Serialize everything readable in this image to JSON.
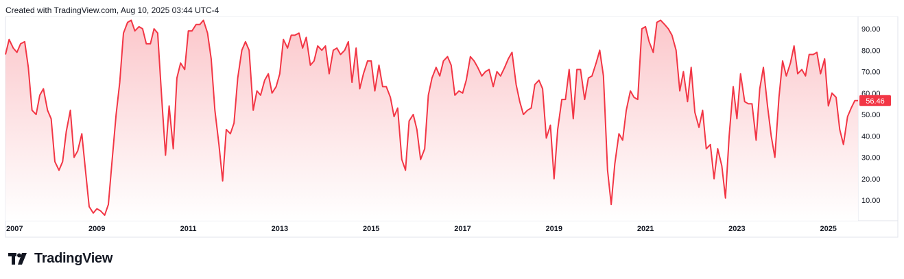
{
  "header": {
    "created_text": "Created with TradingView.com, Aug 10, 2025 03:44 UTC-4"
  },
  "brand": {
    "name": "TradingView",
    "logo_icon": "tradingview-logo-icon"
  },
  "chart_data": {
    "type": "area",
    "line_color": "#f23645",
    "fill_color_top": "#fbc4c8",
    "fill_color_bottom": "#ffffff",
    "last_value_label": "56.46",
    "ylim": [
      0,
      96
    ],
    "xlim": [
      2007.0,
      2025.65
    ],
    "y_ticks": [
      "10.00",
      "20.00",
      "30.00",
      "40.00",
      "50.00",
      "60.00",
      "70.00",
      "80.00",
      "90.00"
    ],
    "x_ticks": [
      "2007",
      "2009",
      "2011",
      "2013",
      "2015",
      "2017",
      "2019",
      "2021",
      "2023",
      "2025"
    ],
    "points": [
      [
        2007.0,
        78
      ],
      [
        2007.08,
        85
      ],
      [
        2007.17,
        81
      ],
      [
        2007.25,
        79
      ],
      [
        2007.33,
        83
      ],
      [
        2007.42,
        84
      ],
      [
        2007.5,
        72
      ],
      [
        2007.58,
        52
      ],
      [
        2007.67,
        50
      ],
      [
        2007.75,
        59
      ],
      [
        2007.83,
        62
      ],
      [
        2007.92,
        52
      ],
      [
        2008.0,
        48
      ],
      [
        2008.08,
        28
      ],
      [
        2008.17,
        24
      ],
      [
        2008.25,
        28
      ],
      [
        2008.33,
        42
      ],
      [
        2008.42,
        52
      ],
      [
        2008.5,
        30
      ],
      [
        2008.58,
        33
      ],
      [
        2008.67,
        41
      ],
      [
        2008.75,
        24
      ],
      [
        2008.83,
        7
      ],
      [
        2008.92,
        4
      ],
      [
        2009.0,
        6
      ],
      [
        2009.08,
        5
      ],
      [
        2009.17,
        3
      ],
      [
        2009.25,
        8
      ],
      [
        2009.33,
        28
      ],
      [
        2009.42,
        50
      ],
      [
        2009.5,
        65
      ],
      [
        2009.58,
        88
      ],
      [
        2009.67,
        93
      ],
      [
        2009.75,
        94
      ],
      [
        2009.83,
        89
      ],
      [
        2009.92,
        91
      ],
      [
        2010.0,
        90
      ],
      [
        2010.08,
        83
      ],
      [
        2010.17,
        83
      ],
      [
        2010.25,
        90
      ],
      [
        2010.33,
        88
      ],
      [
        2010.42,
        57
      ],
      [
        2010.5,
        31
      ],
      [
        2010.58,
        54
      ],
      [
        2010.67,
        34
      ],
      [
        2010.75,
        67
      ],
      [
        2010.83,
        74
      ],
      [
        2010.92,
        71
      ],
      [
        2011.0,
        89
      ],
      [
        2011.08,
        89
      ],
      [
        2011.17,
        92
      ],
      [
        2011.25,
        92
      ],
      [
        2011.33,
        94
      ],
      [
        2011.42,
        88
      ],
      [
        2011.5,
        76
      ],
      [
        2011.58,
        52
      ],
      [
        2011.67,
        36
      ],
      [
        2011.75,
        19
      ],
      [
        2011.83,
        43
      ],
      [
        2011.92,
        41
      ],
      [
        2012.0,
        46
      ],
      [
        2012.08,
        67
      ],
      [
        2012.17,
        80
      ],
      [
        2012.25,
        84
      ],
      [
        2012.33,
        80
      ],
      [
        2012.42,
        52
      ],
      [
        2012.5,
        61
      ],
      [
        2012.58,
        59
      ],
      [
        2012.67,
        66
      ],
      [
        2012.75,
        69
      ],
      [
        2012.83,
        60
      ],
      [
        2012.92,
        63
      ],
      [
        2013.0,
        69
      ],
      [
        2013.08,
        85
      ],
      [
        2013.17,
        81
      ],
      [
        2013.25,
        87
      ],
      [
        2013.33,
        87
      ],
      [
        2013.42,
        88
      ],
      [
        2013.5,
        81
      ],
      [
        2013.58,
        86
      ],
      [
        2013.67,
        73
      ],
      [
        2013.75,
        75
      ],
      [
        2013.83,
        82
      ],
      [
        2013.92,
        80
      ],
      [
        2014.0,
        82
      ],
      [
        2014.08,
        69
      ],
      [
        2014.17,
        80
      ],
      [
        2014.25,
        81
      ],
      [
        2014.33,
        78
      ],
      [
        2014.42,
        80
      ],
      [
        2014.5,
        84
      ],
      [
        2014.58,
        65
      ],
      [
        2014.67,
        81
      ],
      [
        2014.75,
        62
      ],
      [
        2014.83,
        69
      ],
      [
        2014.92,
        75
      ],
      [
        2015.0,
        75
      ],
      [
        2015.08,
        61
      ],
      [
        2015.17,
        73
      ],
      [
        2015.25,
        63
      ],
      [
        2015.33,
        63
      ],
      [
        2015.42,
        58
      ],
      [
        2015.5,
        49
      ],
      [
        2015.58,
        53
      ],
      [
        2015.67,
        29
      ],
      [
        2015.75,
        24
      ],
      [
        2015.83,
        47
      ],
      [
        2015.92,
        50
      ],
      [
        2016.0,
        43
      ],
      [
        2016.08,
        29
      ],
      [
        2016.17,
        34
      ],
      [
        2016.25,
        59
      ],
      [
        2016.33,
        67
      ],
      [
        2016.42,
        72
      ],
      [
        2016.5,
        68
      ],
      [
        2016.58,
        75
      ],
      [
        2016.67,
        77
      ],
      [
        2016.75,
        73
      ],
      [
        2016.83,
        59
      ],
      [
        2016.92,
        61
      ],
      [
        2017.0,
        60
      ],
      [
        2017.08,
        66
      ],
      [
        2017.17,
        77
      ],
      [
        2017.25,
        75
      ],
      [
        2017.33,
        72
      ],
      [
        2017.42,
        68
      ],
      [
        2017.5,
        70
      ],
      [
        2017.58,
        71
      ],
      [
        2017.67,
        63
      ],
      [
        2017.75,
        70
      ],
      [
        2017.83,
        68
      ],
      [
        2017.92,
        72
      ],
      [
        2018.0,
        76
      ],
      [
        2018.08,
        79
      ],
      [
        2018.17,
        64
      ],
      [
        2018.25,
        56
      ],
      [
        2018.33,
        50
      ],
      [
        2018.42,
        52
      ],
      [
        2018.5,
        53
      ],
      [
        2018.58,
        64
      ],
      [
        2018.67,
        66
      ],
      [
        2018.75,
        62
      ],
      [
        2018.83,
        39
      ],
      [
        2018.92,
        45
      ],
      [
        2019.0,
        20
      ],
      [
        2019.08,
        43
      ],
      [
        2019.17,
        57
      ],
      [
        2019.25,
        57
      ],
      [
        2019.33,
        71
      ],
      [
        2019.42,
        48
      ],
      [
        2019.5,
        71
      ],
      [
        2019.58,
        71
      ],
      [
        2019.67,
        57
      ],
      [
        2019.75,
        67
      ],
      [
        2019.83,
        68
      ],
      [
        2019.92,
        74
      ],
      [
        2020.0,
        80
      ],
      [
        2020.08,
        68
      ],
      [
        2020.17,
        24
      ],
      [
        2020.25,
        8
      ],
      [
        2020.33,
        27
      ],
      [
        2020.42,
        41
      ],
      [
        2020.5,
        38
      ],
      [
        2020.58,
        52
      ],
      [
        2020.67,
        61
      ],
      [
        2020.75,
        58
      ],
      [
        2020.83,
        57
      ],
      [
        2020.92,
        90
      ],
      [
        2021.0,
        91
      ],
      [
        2021.08,
        84
      ],
      [
        2021.17,
        79
      ],
      [
        2021.25,
        93
      ],
      [
        2021.33,
        94
      ],
      [
        2021.42,
        92
      ],
      [
        2021.5,
        90
      ],
      [
        2021.58,
        87
      ],
      [
        2021.67,
        80
      ],
      [
        2021.75,
        61
      ],
      [
        2021.83,
        70
      ],
      [
        2021.92,
        56
      ],
      [
        2022.0,
        72
      ],
      [
        2022.08,
        51
      ],
      [
        2022.17,
        44
      ],
      [
        2022.25,
        52
      ],
      [
        2022.33,
        34
      ],
      [
        2022.42,
        36
      ],
      [
        2022.5,
        20
      ],
      [
        2022.58,
        34
      ],
      [
        2022.67,
        26
      ],
      [
        2022.75,
        11
      ],
      [
        2022.83,
        40
      ],
      [
        2022.92,
        63
      ],
      [
        2023.0,
        48
      ],
      [
        2023.08,
        69
      ],
      [
        2023.17,
        56
      ],
      [
        2023.25,
        55
      ],
      [
        2023.33,
        55
      ],
      [
        2023.42,
        38
      ],
      [
        2023.5,
        62
      ],
      [
        2023.58,
        72
      ],
      [
        2023.67,
        54
      ],
      [
        2023.75,
        40
      ],
      [
        2023.83,
        30
      ],
      [
        2023.92,
        58
      ],
      [
        2024.0,
        75
      ],
      [
        2024.08,
        68
      ],
      [
        2024.17,
        74
      ],
      [
        2024.25,
        82
      ],
      [
        2024.33,
        69
      ],
      [
        2024.42,
        71
      ],
      [
        2024.5,
        68
      ],
      [
        2024.58,
        78
      ],
      [
        2024.67,
        78
      ],
      [
        2024.75,
        79
      ],
      [
        2024.83,
        69
      ],
      [
        2024.92,
        76
      ],
      [
        2025.0,
        54
      ],
      [
        2025.08,
        60
      ],
      [
        2025.17,
        58
      ],
      [
        2025.25,
        43
      ],
      [
        2025.33,
        36
      ],
      [
        2025.42,
        49
      ],
      [
        2025.5,
        53
      ],
      [
        2025.58,
        56.46
      ],
      [
        2025.65,
        56.46
      ]
    ]
  }
}
